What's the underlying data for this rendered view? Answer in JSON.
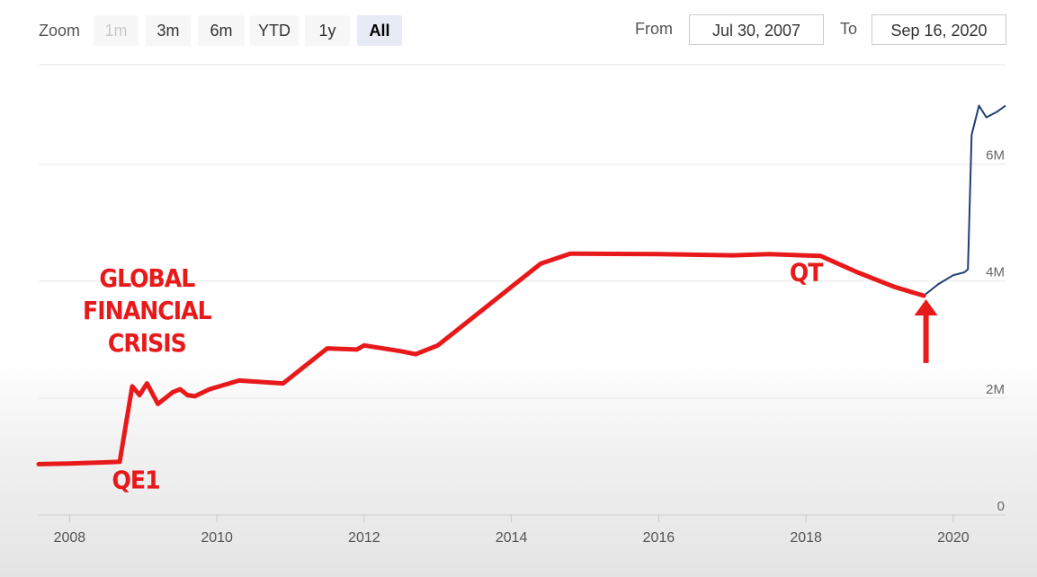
{
  "toolbar": {
    "zoom_label": "Zoom",
    "zoom_buttons": [
      "1m",
      "3m",
      "6m",
      "YTD",
      "1y",
      "All"
    ],
    "from_label": "From",
    "from_value": "Jul 30, 2007",
    "to_label": "To",
    "to_value": "Sep 16, 2020"
  },
  "chart_data": {
    "type": "line",
    "x_ticks": [
      "2008",
      "2010",
      "2012",
      "2014",
      "2016",
      "2018",
      "2020"
    ],
    "y_ticks": [
      "0",
      "2M",
      "4M",
      "6M"
    ],
    "xlim": [
      2007.58,
      2020.71
    ],
    "ylim": [
      0,
      7700000
    ],
    "grid": true,
    "series": [
      {
        "color": "#1f3f73",
        "points": [
          [
            2007.58,
            870000
          ],
          [
            2008.0,
            880000
          ],
          [
            2008.5,
            900000
          ],
          [
            2008.68,
            910000
          ],
          [
            2008.85,
            2200000
          ],
          [
            2008.95,
            2050000
          ],
          [
            2009.05,
            2250000
          ],
          [
            2009.2,
            1900000
          ],
          [
            2009.4,
            2100000
          ],
          [
            2009.5,
            2150000
          ],
          [
            2009.6,
            2050000
          ],
          [
            2009.7,
            2030000
          ],
          [
            2009.9,
            2150000
          ],
          [
            2010.3,
            2300000
          ],
          [
            2010.9,
            2250000
          ],
          [
            2011.0,
            2350000
          ],
          [
            2011.5,
            2850000
          ],
          [
            2011.9,
            2830000
          ],
          [
            2012.0,
            2900000
          ],
          [
            2012.5,
            2800000
          ],
          [
            2012.7,
            2750000
          ],
          [
            2013.0,
            2900000
          ],
          [
            2013.5,
            3400000
          ],
          [
            2014.0,
            3900000
          ],
          [
            2014.4,
            4300000
          ],
          [
            2014.8,
            4470000
          ],
          [
            2016.0,
            4460000
          ],
          [
            2017.0,
            4440000
          ],
          [
            2017.5,
            4460000
          ],
          [
            2018.2,
            4430000
          ],
          [
            2018.7,
            4150000
          ],
          [
            2019.2,
            3900000
          ],
          [
            2019.6,
            3750000
          ],
          [
            2019.8,
            3950000
          ],
          [
            2020.0,
            4100000
          ],
          [
            2020.15,
            4150000
          ],
          [
            2020.2,
            4200000
          ],
          [
            2020.25,
            6500000
          ],
          [
            2020.35,
            7000000
          ],
          [
            2020.45,
            6800000
          ],
          [
            2020.6,
            6900000
          ],
          [
            2020.71,
            7000000
          ]
        ]
      }
    ],
    "highlight": {
      "color": "#e8191b",
      "points": [
        [
          2007.58,
          870000
        ],
        [
          2008.0,
          880000
        ],
        [
          2008.5,
          900000
        ],
        [
          2008.68,
          910000
        ],
        [
          2008.85,
          2200000
        ],
        [
          2008.95,
          2050000
        ],
        [
          2009.05,
          2250000
        ],
        [
          2009.2,
          1900000
        ],
        [
          2009.4,
          2100000
        ],
        [
          2009.5,
          2150000
        ],
        [
          2009.6,
          2050000
        ],
        [
          2009.7,
          2030000
        ],
        [
          2009.9,
          2150000
        ],
        [
          2010.3,
          2300000
        ],
        [
          2010.9,
          2250000
        ],
        [
          2011.0,
          2350000
        ],
        [
          2011.5,
          2850000
        ],
        [
          2011.9,
          2830000
        ],
        [
          2012.0,
          2900000
        ],
        [
          2012.5,
          2800000
        ],
        [
          2012.7,
          2750000
        ],
        [
          2013.0,
          2900000
        ],
        [
          2013.5,
          3400000
        ],
        [
          2014.0,
          3900000
        ],
        [
          2014.4,
          4300000
        ],
        [
          2014.8,
          4470000
        ],
        [
          2016.0,
          4460000
        ],
        [
          2017.0,
          4440000
        ],
        [
          2017.5,
          4460000
        ],
        [
          2018.2,
          4430000
        ],
        [
          2018.7,
          4150000
        ],
        [
          2019.2,
          3900000
        ],
        [
          2019.6,
          3750000
        ]
      ]
    },
    "annotations": [
      {
        "lines": [
          "GLOBAL",
          "FINANCIAL",
          "CRISIS"
        ],
        "x": 2009.05,
        "y": 3900000
      },
      {
        "lines": [
          "QE1"
        ],
        "x": 2008.9,
        "y": 450000
      },
      {
        "lines": [
          "QT"
        ],
        "x": 2018.0,
        "y": 4000000
      }
    ],
    "arrow": {
      "x": 2019.63,
      "y_from": 2600000,
      "y_to": 3750000
    }
  }
}
